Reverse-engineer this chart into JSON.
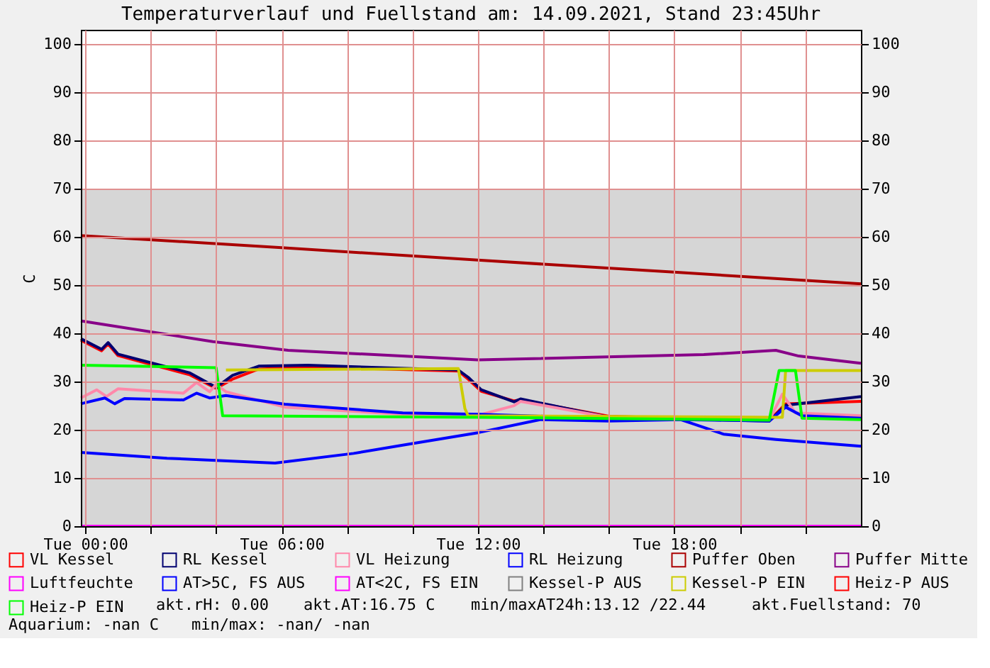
{
  "chart_data": {
    "type": "line",
    "title": "Temperaturverlauf und Fuellstand am: 14.09.2021, Stand 23:45Uhr",
    "ylabel": "C",
    "xlim": [
      "2021-09-13T23:52",
      "2021-09-14T23:42"
    ],
    "xticks": [
      {
        "value": "2021-09-14T00:00",
        "label": "Tue 00:00"
      },
      {
        "value": "2021-09-14T02:00",
        "label": null
      },
      {
        "value": "2021-09-14T04:00",
        "label": null
      },
      {
        "value": "2021-09-14T06:00",
        "label": "Tue 06:00"
      },
      {
        "value": "2021-09-14T08:00",
        "label": null
      },
      {
        "value": "2021-09-14T10:00",
        "label": null
      },
      {
        "value": "2021-09-14T12:00",
        "label": "Tue 12:00"
      },
      {
        "value": "2021-09-14T14:00",
        "label": null
      },
      {
        "value": "2021-09-14T16:00",
        "label": null
      },
      {
        "value": "2021-09-14T18:00",
        "label": "Tue 18:00"
      },
      {
        "value": "2021-09-14T20:00",
        "label": null
      },
      {
        "value": "2021-09-14T22:00",
        "label": null
      }
    ],
    "ylim": [
      0,
      103
    ],
    "yticks": [
      0,
      10,
      20,
      30,
      40,
      50,
      60,
      70,
      80,
      90,
      100
    ],
    "y2lim": [
      0,
      103
    ],
    "y2ticks": [
      0,
      10,
      20,
      30,
      40,
      50,
      60,
      70,
      80,
      90,
      100
    ],
    "grid": true,
    "legend": "bottom",
    "series": [
      {
        "type": "area",
        "color": "#d6d6d6",
        "x": [
          "2021-09-13T23:52",
          "2021-09-14T23:42"
        ],
        "values": [
          70,
          70
        ]
      },
      {
        "name": "VL Kessel",
        "color": "#ff0000",
        "x": [
          "2021-09-13T23:52",
          "2021-09-14T00:30",
          "2021-09-14T00:42",
          "2021-09-14T01:00",
          "2021-09-14T03:12",
          "2021-09-14T04:00",
          "2021-09-14T04:30",
          "2021-09-14T05:18",
          "2021-09-14T06:48",
          "2021-09-14T11:24",
          "2021-09-14T11:42",
          "2021-09-14T12:06",
          "2021-09-14T13:06",
          "2021-09-14T13:18",
          "2021-09-14T16:00",
          "2021-09-14T20:54",
          "2021-09-14T21:24",
          "2021-09-14T23:42"
        ],
        "values": [
          38.6,
          36.4,
          37.8,
          35.4,
          31.4,
          28.6,
          30.5,
          32.6,
          33.0,
          32.2,
          30.5,
          28.0,
          26.0,
          26.2,
          22.8,
          21.9,
          25.4,
          25.9
        ]
      },
      {
        "name": "RL Kessel",
        "color": "#000070",
        "x": [
          "2021-09-13T23:52",
          "2021-09-14T00:30",
          "2021-09-14T00:42",
          "2021-09-14T01:00",
          "2021-09-14T03:12",
          "2021-09-14T04:00",
          "2021-09-14T04:30",
          "2021-09-14T05:18",
          "2021-09-14T06:48",
          "2021-09-14T11:24",
          "2021-09-14T11:42",
          "2021-09-14T12:06",
          "2021-09-14T13:06",
          "2021-09-14T13:18",
          "2021-09-14T16:00",
          "2021-09-14T20:54",
          "2021-09-14T21:24",
          "2021-09-14T23:42"
        ],
        "values": [
          38.9,
          36.7,
          38.1,
          35.7,
          31.8,
          28.8,
          31.3,
          33.2,
          33.4,
          32.4,
          30.9,
          28.3,
          25.8,
          26.4,
          22.6,
          21.8,
          25.1,
          26.9
        ]
      },
      {
        "name": "VL Heizung",
        "color": "#ff88aa",
        "x": [
          "2021-09-13T23:52",
          "2021-09-14T00:21",
          "2021-09-14T00:39",
          "2021-09-14T01:00",
          "2021-09-14T03:00",
          "2021-09-14T03:24",
          "2021-09-14T03:48",
          "2021-09-14T04:00",
          "2021-09-14T04:18",
          "2021-09-14T06:06",
          "2021-09-14T09:42",
          "2021-09-14T12:06",
          "2021-09-14T13:06",
          "2021-09-14T13:18",
          "2021-09-14T16:00",
          "2021-09-14T20:54",
          "2021-09-14T21:18",
          "2021-09-14T21:42",
          "2021-09-14T23:42"
        ],
        "values": [
          26.6,
          28.3,
          26.9,
          28.5,
          27.6,
          29.8,
          27.9,
          29.4,
          27.9,
          24.7,
          23.2,
          23.2,
          25.0,
          25.9,
          22.6,
          22.0,
          27.4,
          23.5,
          22.9
        ]
      },
      {
        "name": "RL Heizung",
        "color": "#0000ff",
        "x": [
          "2021-09-13T23:52",
          "2021-09-14T00:36",
          "2021-09-14T00:54",
          "2021-09-14T01:12",
          "2021-09-14T03:00",
          "2021-09-14T03:24",
          "2021-09-14T03:48",
          "2021-09-14T04:18",
          "2021-09-14T06:06",
          "2021-09-14T09:42",
          "2021-09-14T12:06",
          "2021-09-14T16:00",
          "2021-09-14T20:54",
          "2021-09-14T21:24",
          "2021-09-14T21:54",
          "2021-09-14T23:42"
        ],
        "values": [
          25.4,
          26.6,
          25.4,
          26.5,
          26.2,
          27.6,
          26.6,
          27.1,
          25.3,
          23.5,
          23.2,
          22.4,
          21.8,
          24.7,
          22.9,
          22.4
        ]
      },
      {
        "name": "Puffer Oben",
        "color": "#aa0000",
        "x": [
          "2021-09-13T23:52",
          "2021-09-14T06:00",
          "2021-09-14T12:00",
          "2021-09-14T18:00",
          "2021-09-14T23:42"
        ],
        "values": [
          60.3,
          57.8,
          55.2,
          52.7,
          50.3
        ]
      },
      {
        "name": "Puffer Mitte",
        "color": "#880088",
        "x": [
          "2021-09-13T23:52",
          "2021-09-14T03:54",
          "2021-09-14T06:12",
          "2021-09-14T12:00",
          "2021-09-14T18:54",
          "2021-09-14T21:06",
          "2021-09-14T21:48",
          "2021-09-14T23:42"
        ],
        "values": [
          42.6,
          38.3,
          36.5,
          34.5,
          35.6,
          36.5,
          35.3,
          33.8
        ]
      },
      {
        "name": "Luftfeuchte",
        "color": "#ff00ff",
        "x": [
          "2021-09-13T23:52",
          "2021-09-14T23:42"
        ],
        "values": [
          0,
          0
        ]
      },
      {
        "name": "AT>5C, FS AUS",
        "color": "#0000ff",
        "x": [
          "2021-09-13T23:52",
          "2021-09-14T02:30",
          "2021-09-14T05:48",
          "2021-09-14T08:12",
          "2021-09-14T09:42",
          "2021-09-14T12:00",
          "2021-09-14T13:54",
          "2021-09-14T16:00",
          "2021-09-14T18:12",
          "2021-09-14T19:30",
          "2021-09-14T21:06",
          "2021-09-14T23:42"
        ],
        "values": [
          15.3,
          14.1,
          13.1,
          15.1,
          16.8,
          19.4,
          22.1,
          21.8,
          22.1,
          19.1,
          18.0,
          16.6
        ]
      },
      {
        "name": "AT<2C, FS EIN",
        "color": "#ff00ff"
      },
      {
        "name": "Kessel-P AUS",
        "color": "#808080"
      },
      {
        "name": "Kessel-P EIN",
        "color": "#cccc00",
        "x": [
          "2021-09-14T04:18",
          "2021-09-14T11:24",
          "2021-09-14T11:36",
          "2021-09-14T11:42",
          "2021-09-14T21:18",
          "2021-09-14T21:24",
          "2021-09-14T23:42"
        ],
        "values": [
          32.4,
          32.7,
          24.4,
          22.9,
          22.6,
          32.3,
          32.3
        ]
      },
      {
        "name": "Heiz-P AUS",
        "color": "#ff0000"
      },
      {
        "name": "Heiz-P EIN",
        "color": "#00ff00",
        "x": [
          "2021-09-13T23:52",
          "2021-09-14T04:00",
          "2021-09-14T04:12",
          "2021-09-14T12:06",
          "2021-09-14T20:54",
          "2021-09-14T21:12",
          "2021-09-14T21:42",
          "2021-09-14T21:54",
          "2021-09-14T23:42"
        ],
        "values": [
          33.4,
          32.9,
          22.9,
          22.6,
          22.0,
          32.3,
          32.3,
          22.4,
          22.1
        ]
      }
    ],
    "annotations": [
      "akt.rH: 0.00",
      "akt.AT:16.75 C",
      "min/maxAT24h:13.12 /22.44",
      "akt.Fuellstand:   70",
      "Aquarium: -nan C",
      "min/max: -nan/ -nan"
    ]
  }
}
